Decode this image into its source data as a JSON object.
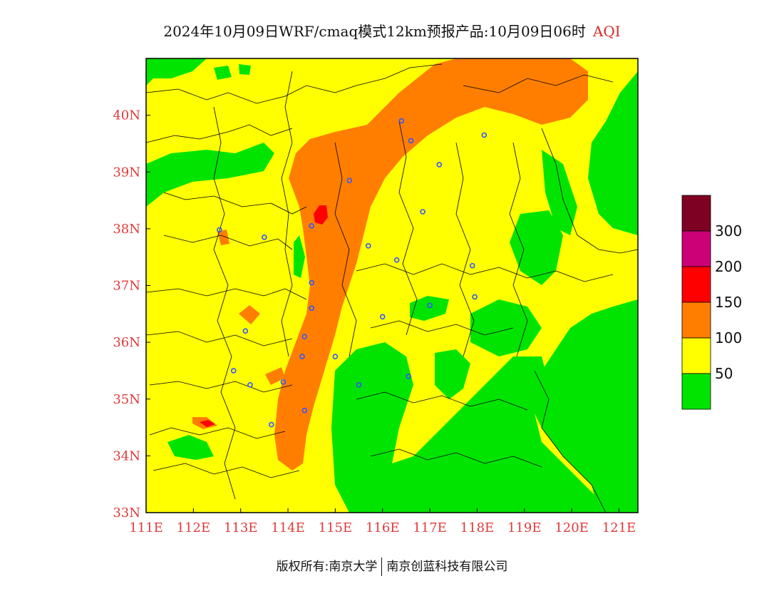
{
  "title": {
    "main": "2024年10月09日WRF/cmaq模式12km预报产品:10月09日06时",
    "suffix": "AQI"
  },
  "footer": {
    "left": "版权所有:南京大学",
    "right": "南京创蓝科技有限公司"
  },
  "map": {
    "lon_range": [
      111,
      121.4
    ],
    "lat_range": [
      33,
      41
    ],
    "x_ticks": [
      "111E",
      "112E",
      "113E",
      "114E",
      "115E",
      "116E",
      "117E",
      "118E",
      "119E",
      "120E",
      "121E"
    ],
    "y_ticks": [
      "33N",
      "34N",
      "35N",
      "36N",
      "37N",
      "38N",
      "39N",
      "40N"
    ],
    "colors": {
      "good": "#00e400",
      "moderate": "#ffff00",
      "sensitive": "#ff7e00",
      "unhealthy": "#ff0000",
      "very_unhealthy": "#cc0077",
      "hazardous": "#7e0023",
      "tick_label": "#e03a3a",
      "boundary": "#000000",
      "city_marker": "#3355ff"
    },
    "cities": [
      {
        "lon": 115.3,
        "lat": 38.85
      },
      {
        "lon": 114.5,
        "lat": 38.05
      },
      {
        "lon": 112.55,
        "lat": 37.98
      },
      {
        "lon": 113.5,
        "lat": 37.85
      },
      {
        "lon": 116.4,
        "lat": 39.9
      },
      {
        "lon": 116.6,
        "lat": 39.55
      },
      {
        "lon": 117.2,
        "lat": 39.13
      },
      {
        "lon": 118.15,
        "lat": 39.65
      },
      {
        "lon": 116.85,
        "lat": 38.3
      },
      {
        "lon": 115.7,
        "lat": 37.7
      },
      {
        "lon": 116.3,
        "lat": 37.45
      },
      {
        "lon": 114.5,
        "lat": 37.05
      },
      {
        "lon": 114.5,
        "lat": 36.6
      },
      {
        "lon": 114.35,
        "lat": 36.1
      },
      {
        "lon": 114.3,
        "lat": 35.75
      },
      {
        "lon": 115.0,
        "lat": 35.75
      },
      {
        "lon": 115.5,
        "lat": 35.25
      },
      {
        "lon": 116.0,
        "lat": 36.45
      },
      {
        "lon": 117.0,
        "lat": 36.65
      },
      {
        "lon": 117.95,
        "lat": 36.8
      },
      {
        "lon": 117.9,
        "lat": 37.35
      },
      {
        "lon": 116.55,
        "lat": 35.4
      },
      {
        "lon": 113.1,
        "lat": 36.2
      },
      {
        "lon": 112.85,
        "lat": 35.5
      },
      {
        "lon": 113.2,
        "lat": 35.25
      },
      {
        "lon": 113.9,
        "lat": 35.3
      },
      {
        "lon": 114.35,
        "lat": 34.8
      },
      {
        "lon": 113.65,
        "lat": 34.55
      }
    ]
  },
  "legend": {
    "ticks": [
      "300",
      "200",
      "150",
      "100",
      "50"
    ],
    "colors": [
      "#7e0023",
      "#cc0077",
      "#ff0000",
      "#ff7e00",
      "#ffff00",
      "#00e400"
    ]
  }
}
